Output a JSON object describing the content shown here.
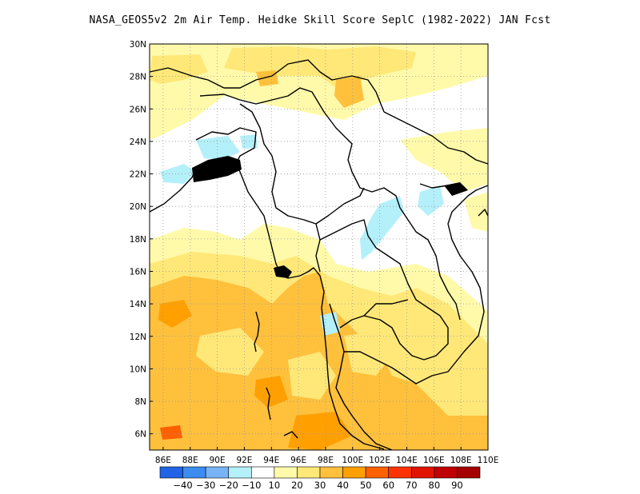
{
  "title": "NASA_GEOS5v2  2m Air Temp. Heidke Skill Score SeplC (1982-2022) JAN Fcst",
  "map": {
    "lon_range": [
      85,
      110
    ],
    "lat_range": [
      5,
      30
    ],
    "lon_ticks": [
      "86E",
      "88E",
      "90E",
      "92E",
      "94E",
      "96E",
      "98E",
      "100E",
      "102E",
      "104E",
      "106E",
      "108E",
      "110E"
    ],
    "lat_ticks": [
      "6N",
      "8N",
      "10N",
      "12N",
      "14N",
      "16N",
      "18N",
      "20N",
      "22N",
      "24N",
      "26N",
      "28N",
      "30N"
    ],
    "grid": "dotted"
  },
  "colorbar": {
    "colors": [
      "#1f63e6",
      "#3c8cf0",
      "#78b4f5",
      "#b4f0fa",
      "#ffffff",
      "#fffaaa",
      "#ffe878",
      "#ffc03c",
      "#ffa000",
      "#ff6000",
      "#ff3200",
      "#e11400",
      "#c00000",
      "#a50000"
    ],
    "labels": [
      "-40",
      "-30",
      "-20",
      "-10",
      "10",
      "20",
      "30",
      "40",
      "50",
      "60",
      "70",
      "80",
      "90"
    ]
  }
}
